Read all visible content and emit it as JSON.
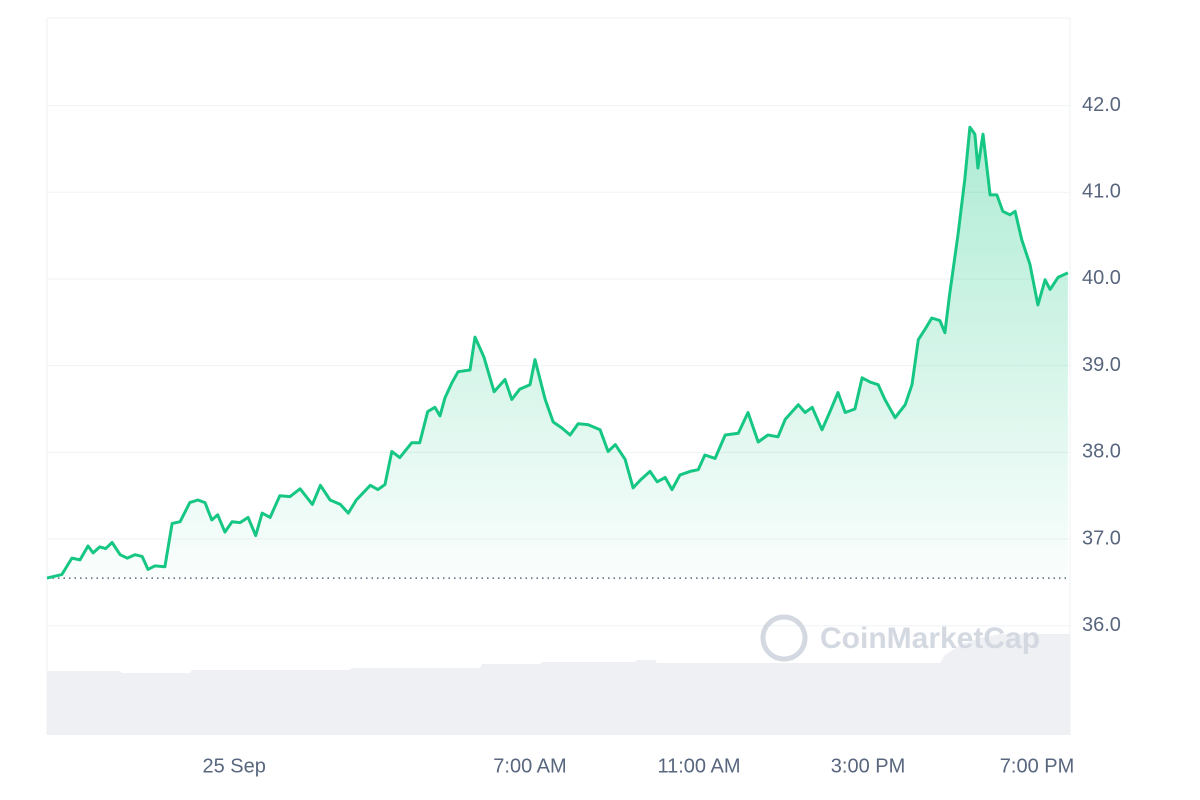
{
  "chart_data": {
    "type": "line",
    "x": [
      -4.43,
      -4.08,
      -3.84,
      -3.65,
      -3.46,
      -3.34,
      -3.18,
      -3.04,
      -2.89,
      -2.7,
      -2.53,
      -2.35,
      -2.18,
      -2.04,
      -1.88,
      -1.64,
      -1.47,
      -1.28,
      -1.05,
      -0.86,
      -0.69,
      -0.53,
      -0.39,
      -0.22,
      -0.05,
      0.14,
      0.33,
      0.51,
      0.66,
      0.85,
      1.08,
      1.32,
      1.56,
      1.85,
      2.04,
      2.27,
      2.51,
      2.7,
      2.89,
      3.22,
      3.4,
      3.57,
      3.73,
      3.92,
      4.2,
      4.39,
      4.58,
      4.75,
      4.87,
      4.99,
      5.15,
      5.3,
      5.58,
      5.7,
      5.91,
      6.15,
      6.41,
      6.57,
      6.76,
      7.0,
      7.12,
      7.36,
      7.55,
      7.76,
      7.95,
      8.14,
      8.37,
      8.66,
      8.85,
      9.02,
      9.25,
      9.44,
      9.61,
      9.84,
      10.01,
      10.2,
      10.36,
      10.55,
      10.79,
      10.98,
      11.14,
      11.38,
      11.62,
      11.93,
      12.16,
      12.4,
      12.63,
      12.87,
      13.04,
      13.35,
      13.51,
      13.68,
      13.91,
      14.1,
      14.29,
      14.46,
      14.69,
      14.86,
      15.05,
      15.24,
      15.4,
      15.64,
      15.88,
      16.04,
      16.19,
      16.35,
      16.51,
      16.7,
      16.82,
      16.93,
      17.13,
      17.29,
      17.41,
      17.53,
      17.6,
      17.72,
      17.89,
      18.05,
      18.19,
      18.36,
      18.48,
      18.64,
      18.83,
      19.02,
      19.19,
      19.31,
      19.5,
      19.73
    ],
    "values": [
      36.55,
      36.59,
      36.78,
      36.76,
      36.92,
      36.84,
      36.91,
      36.89,
      36.96,
      36.82,
      36.78,
      36.82,
      36.8,
      36.65,
      36.69,
      36.68,
      37.18,
      37.2,
      37.42,
      37.45,
      37.42,
      37.22,
      37.28,
      37.08,
      37.2,
      37.19,
      37.25,
      37.04,
      37.3,
      37.25,
      37.5,
      37.49,
      37.58,
      37.4,
      37.62,
      37.45,
      37.4,
      37.3,
      37.45,
      37.62,
      37.57,
      37.63,
      38.01,
      37.94,
      38.11,
      38.11,
      38.47,
      38.52,
      38.42,
      38.63,
      38.8,
      38.93,
      38.95,
      39.33,
      39.1,
      38.7,
      38.84,
      38.61,
      38.73,
      38.78,
      39.07,
      38.61,
      38.35,
      38.28,
      38.2,
      38.33,
      38.32,
      38.26,
      38.01,
      38.09,
      37.92,
      37.59,
      37.68,
      37.78,
      37.66,
      37.71,
      37.57,
      37.74,
      37.78,
      37.8,
      37.97,
      37.93,
      38.2,
      38.22,
      38.46,
      38.12,
      38.2,
      38.18,
      38.38,
      38.55,
      38.46,
      38.52,
      38.26,
      38.47,
      38.69,
      38.46,
      38.5,
      38.86,
      38.81,
      38.78,
      38.61,
      38.4,
      38.55,
      38.78,
      39.3,
      39.42,
      39.55,
      39.52,
      39.38,
      39.82,
      40.51,
      41.15,
      41.75,
      41.67,
      41.28,
      41.67,
      40.97,
      40.97,
      40.78,
      40.74,
      40.78,
      40.45,
      40.17,
      39.7,
      39.99,
      39.88,
      40.02,
      40.07
    ],
    "color": "#16c784",
    "baseline": 36.55,
    "xlim": [
      -4.43,
      19.78
    ],
    "xticks": [
      {
        "value": 0,
        "label": "25 Sep"
      },
      {
        "value": 7,
        "label": "7:00 AM"
      },
      {
        "value": 11,
        "label": "11:00 AM"
      },
      {
        "value": 15,
        "label": "3:00 PM"
      },
      {
        "value": 19,
        "label": "7:00 PM"
      }
    ],
    "ylim": [
      34.74,
      43.01
    ],
    "yticks": [
      {
        "value": 36,
        "label": "36.0"
      },
      {
        "value": 37,
        "label": "37.0"
      },
      {
        "value": 38,
        "label": "38.0"
      },
      {
        "value": 39,
        "label": "39.0"
      },
      {
        "value": 40,
        "label": "40.0"
      },
      {
        "value": 41,
        "label": "41.0"
      },
      {
        "value": 42,
        "label": "42.0"
      }
    ],
    "grid": true,
    "watermark": "CoinMarketCap"
  }
}
